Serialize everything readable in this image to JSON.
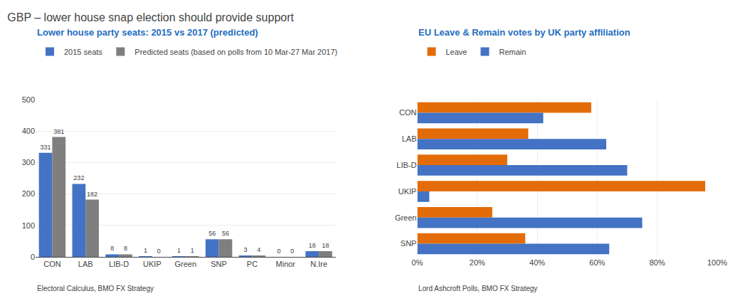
{
  "title": "GBP – lower house snap election should provide support",
  "chart_data": [
    {
      "type": "bar",
      "subtitle": "Lower house party seats: 2015 vs 2017 (predicted)",
      "categories": [
        "CON",
        "LAB",
        "LIB-D",
        "UKIP",
        "Green",
        "SNP",
        "PC",
        "Minor",
        "N.Ire"
      ],
      "series": [
        {
          "name": "2015 seats",
          "color": "#4472c4",
          "values": [
            331,
            232,
            8,
            1,
            1,
            56,
            3,
            0,
            18
          ]
        },
        {
          "name": "Predicted seats (based on polls from 10 Mar-27 Mar 2017)",
          "color": "#7f7f7f",
          "values": [
            381,
            182,
            8,
            0,
            1,
            56,
            4,
            0,
            18
          ]
        }
      ],
      "ylim": [
        0,
        500
      ],
      "yticks": [
        0,
        100,
        200,
        300,
        400,
        500
      ],
      "grid": true,
      "data_labels": true,
      "legend": "top",
      "source": "Electoral Calculus, BMO FX Strategy"
    },
    {
      "type": "bar",
      "orientation": "horizontal",
      "subtitle": "EU Leave & Remain votes by UK party affiliation",
      "categories": [
        "CON",
        "LAB",
        "LIB-D",
        "UKIP",
        "Green",
        "SNP"
      ],
      "series": [
        {
          "name": "Leave",
          "color": "#e36c09",
          "values": [
            58,
            37,
            30,
            96,
            25,
            36
          ]
        },
        {
          "name": "Remain",
          "color": "#4472c4",
          "values": [
            42,
            63,
            70,
            4,
            75,
            64
          ]
        }
      ],
      "xlim": [
        0,
        100
      ],
      "xticks": [
        {
          "value": 0,
          "label": "0%"
        },
        {
          "value": 20,
          "label": "20%"
        },
        {
          "value": 40,
          "label": "40%"
        },
        {
          "value": 60,
          "label": "60%"
        },
        {
          "value": 80,
          "label": "80%"
        },
        {
          "value": 100,
          "label": "100%"
        }
      ],
      "grid": true,
      "legend": "top",
      "source": "Lord Ashcroft Polls, BMO FX Strategy"
    }
  ]
}
